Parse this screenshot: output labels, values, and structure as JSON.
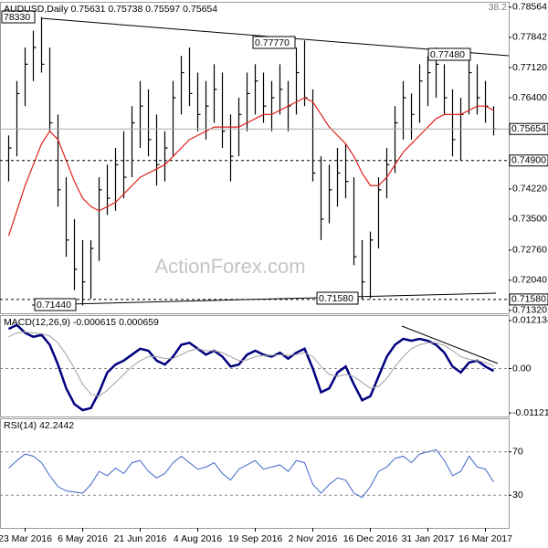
{
  "chart_data": [
    {
      "type": "ohlc",
      "title": "AUDUSD,Daily 0.75631 0.75738 0.75597 0.75654",
      "corner_text": "38.2",
      "watermark": "ActionForex.com",
      "ylim": [
        0.7125,
        0.7867
      ],
      "yticks": [
        0.78564,
        0.77842,
        {
          "value": 0.7712,
          "label": "0.77120"
        },
        {
          "value": 0.764,
          "label": "0.76400"
        },
        {
          "value": 0.7422,
          "label": "0.74220"
        },
        {
          "value": 0.735,
          "label": "0.73500"
        },
        {
          "value": 0.7276,
          "label": "0.72760"
        },
        {
          "value": 0.7204,
          "label": "0.72040"
        },
        {
          "value": 0.7132,
          "label": "0.71320"
        }
      ],
      "bar_color": "#000000",
      "high": [
        0.755,
        0.768,
        0.776,
        0.78,
        0.7833,
        0.776,
        0.76,
        0.745,
        0.735,
        0.73,
        0.73,
        0.745,
        0.748,
        0.752,
        0.756,
        0.762,
        0.768,
        0.766,
        0.76,
        0.756,
        0.768,
        0.774,
        0.776,
        0.77,
        0.768,
        0.772,
        0.77,
        0.76,
        0.764,
        0.77,
        0.772,
        0.77,
        0.768,
        0.772,
        0.768,
        0.776,
        0.7777,
        0.766,
        0.75,
        0.748,
        0.752,
        0.753,
        0.745,
        0.73,
        0.732,
        0.745,
        0.752,
        0.762,
        0.768,
        0.765,
        0.772,
        0.774,
        0.776,
        0.772,
        0.766,
        0.764,
        0.7748,
        0.772,
        0.768,
        0.762
      ],
      "low": [
        0.744,
        0.75,
        0.762,
        0.768,
        0.77,
        0.756,
        0.738,
        0.726,
        0.718,
        0.7144,
        0.716,
        0.725,
        0.736,
        0.737,
        0.74,
        0.745,
        0.752,
        0.75,
        0.743,
        0.744,
        0.75,
        0.76,
        0.762,
        0.756,
        0.754,
        0.758,
        0.752,
        0.744,
        0.75,
        0.756,
        0.76,
        0.758,
        0.756,
        0.76,
        0.756,
        0.76,
        0.762,
        0.744,
        0.73,
        0.734,
        0.738,
        0.74,
        0.724,
        0.7158,
        0.716,
        0.728,
        0.74,
        0.746,
        0.754,
        0.754,
        0.758,
        0.762,
        0.764,
        0.76,
        0.75,
        0.749,
        0.76,
        0.76,
        0.758,
        0.755
      ],
      "close": [
        0.752,
        0.765,
        0.772,
        0.776,
        0.772,
        0.758,
        0.742,
        0.73,
        0.723,
        0.72,
        0.728,
        0.742,
        0.74,
        0.748,
        0.745,
        0.758,
        0.762,
        0.754,
        0.748,
        0.752,
        0.764,
        0.77,
        0.765,
        0.76,
        0.762,
        0.766,
        0.756,
        0.75,
        0.76,
        0.765,
        0.768,
        0.762,
        0.764,
        0.766,
        0.762,
        0.77,
        0.764,
        0.746,
        0.735,
        0.742,
        0.746,
        0.744,
        0.726,
        0.72,
        0.73,
        0.742,
        0.748,
        0.758,
        0.764,
        0.76,
        0.768,
        0.77,
        0.772,
        0.764,
        0.754,
        0.76,
        0.77,
        0.764,
        0.762,
        0.75654
      ],
      "ma": {
        "color": "#e0201b",
        "values": [
          0.731,
          0.737,
          0.743,
          0.748,
          0.753,
          0.756,
          0.754,
          0.749,
          0.744,
          0.74,
          0.738,
          0.737,
          0.738,
          0.739,
          0.741,
          0.743,
          0.745,
          0.746,
          0.747,
          0.748,
          0.75,
          0.752,
          0.754,
          0.755,
          0.756,
          0.757,
          0.757,
          0.757,
          0.757,
          0.758,
          0.759,
          0.76,
          0.76,
          0.761,
          0.762,
          0.763,
          0.764,
          0.763,
          0.76,
          0.757,
          0.755,
          0.753,
          0.75,
          0.746,
          0.743,
          0.743,
          0.745,
          0.748,
          0.751,
          0.753,
          0.755,
          0.757,
          0.759,
          0.76,
          0.76,
          0.76,
          0.761,
          0.762,
          0.762,
          0.761
        ]
      },
      "levels": [
        {
          "value": 0.75654,
          "style": "solid"
        },
        {
          "value": 0.749,
          "label": "0.74900",
          "style": "dashed"
        },
        {
          "value": 0.7158,
          "label": "0.71580",
          "style": "dashed"
        }
      ],
      "annotations": [
        "78330",
        "0.77770",
        "0.77480",
        "0.71440",
        "0.71580"
      ]
    },
    {
      "type": "line",
      "title": "MACD(12,26,9) -0.000615 0.000659",
      "ylim": [
        -0.01211,
        0.01326
      ],
      "yticks": [
        0.012134,
        {
          "value": 0,
          "label": "0.00"
        },
        -0.011217
      ],
      "zero_line": true,
      "series": [
        {
          "color": "#00007f",
          "values": [
            0.01,
            0.011,
            0.009,
            0.008,
            0.0085,
            0.006,
            0.001,
            -0.005,
            -0.009,
            -0.0105,
            -0.01,
            -0.006,
            -0.001,
            0.001,
            0.002,
            0.0035,
            0.005,
            0.0045,
            0.002,
            0.001,
            0.003,
            0.006,
            0.0065,
            0.005,
            0.0035,
            0.0045,
            0.003,
            0.0005,
            0.001,
            0.0035,
            0.0045,
            0.0035,
            0.003,
            0.004,
            0.0025,
            0.004,
            0.005,
            0,
            -0.006,
            -0.005,
            -0.001,
            0.0005,
            -0.004,
            -0.008,
            -0.007,
            -0.002,
            0.003,
            0.006,
            0.0075,
            0.007,
            0.0075,
            0.007,
            0.006,
            0.004,
            0.0005,
            -0.001,
            0.0015,
            0.002,
            0.0005,
            -0.000615
          ]
        },
        {
          "color": "#a0a0a0",
          "values": [
            0.008,
            0.009,
            0.0092,
            0.009,
            0.0088,
            0.0082,
            0.0065,
            0.0035,
            0,
            -0.004,
            -0.0065,
            -0.007,
            -0.0055,
            -0.0035,
            -0.0015,
            0.0005,
            0.002,
            0.003,
            0.003,
            0.0025,
            0.0025,
            0.0035,
            0.0045,
            0.005,
            0.0045,
            0.0045,
            0.004,
            0.003,
            0.002,
            0.0022,
            0.003,
            0.0033,
            0.0033,
            0.0035,
            0.0033,
            0.0035,
            0.004,
            0.003,
            0.0005,
            -0.0015,
            -0.002,
            -0.0015,
            -0.002,
            -0.0035,
            -0.005,
            -0.0045,
            -0.0025,
            0.0005,
            0.003,
            0.005,
            0.006,
            0.0065,
            0.0065,
            0.0058,
            0.0045,
            0.003,
            0.0023,
            0.002,
            0.0015,
            0.000659
          ]
        }
      ]
    },
    {
      "type": "line",
      "title": "RSI(14) 42.2442",
      "ylim": [
        0,
        100
      ],
      "yticks": [
        70,
        30
      ],
      "tick_lines": "dashed",
      "series": [
        {
          "color": "#3f66c8",
          "values": [
            55,
            62,
            68,
            66,
            60,
            48,
            38,
            34,
            33,
            32,
            40,
            52,
            48,
            55,
            50,
            60,
            62,
            52,
            46,
            50,
            60,
            66,
            60,
            54,
            56,
            60,
            50,
            44,
            54,
            58,
            62,
            54,
            56,
            58,
            52,
            62,
            60,
            40,
            32,
            40,
            46,
            44,
            32,
            28,
            38,
            52,
            56,
            64,
            66,
            60,
            68,
            70,
            72,
            62,
            48,
            52,
            66,
            56,
            54,
            42.2442
          ]
        }
      ],
      "categories": [
        null,
        null,
        "23 Mar 2016",
        null,
        null,
        null,
        null,
        null,
        null,
        "6 May 2016",
        null,
        null,
        null,
        null,
        null,
        null,
        "21 Jun 2016",
        null,
        null,
        null,
        null,
        null,
        null,
        "4 Aug 2016",
        null,
        null,
        null,
        null,
        null,
        null,
        "19 Sep 2016",
        null,
        null,
        null,
        null,
        null,
        null,
        "2 Nov 2016",
        null,
        null,
        null,
        null,
        null,
        null,
        "16 Dec 2016",
        null,
        null,
        null,
        null,
        null,
        null,
        "31 Jan 2017",
        null,
        null,
        null,
        null,
        null,
        null,
        "16 Mar 2017",
        null
      ]
    }
  ]
}
